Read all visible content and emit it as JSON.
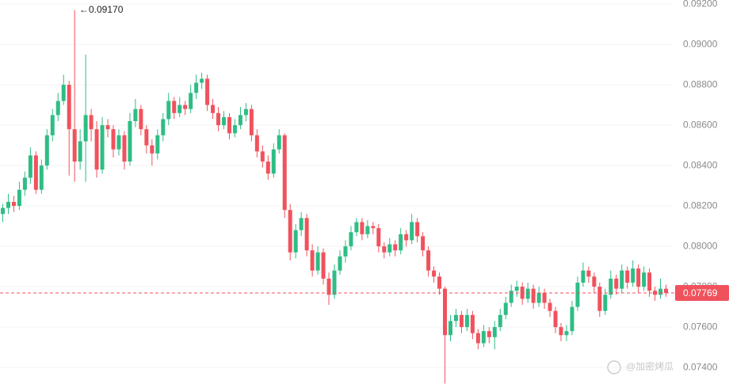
{
  "chart_data": {
    "type": "candlestick",
    "up_color": "#2ebd85",
    "down_color": "#f0525d",
    "ylim": [
      0.07318,
      0.0922
    ],
    "yticks": [
      {
        "value": 0.074,
        "label": "0.07400"
      },
      {
        "value": 0.076,
        "label": "0.07600"
      },
      {
        "value": 0.078,
        "label": "0.07800"
      },
      {
        "value": 0.08,
        "label": "0.08000"
      },
      {
        "value": 0.082,
        "label": "0.08200"
      },
      {
        "value": 0.084,
        "label": "0.08400"
      },
      {
        "value": 0.086,
        "label": "0.08600"
      },
      {
        "value": 0.088,
        "label": "0.08800"
      },
      {
        "value": 0.09,
        "label": "0.09000"
      },
      {
        "value": 0.092,
        "label": "0.09200"
      }
    ],
    "grid": true,
    "high_annotation": {
      "value": 0.0917,
      "label": "0.09170"
    },
    "last_price": {
      "value": 0.07769,
      "label": "0.07769"
    },
    "watermark": "@加密烤瓜",
    "open": [
      0.0816,
      0.0819,
      0.0822,
      0.082,
      0.0828,
      0.0834,
      0.0845,
      0.0828,
      0.084,
      0.0855,
      0.0865,
      0.0872,
      0.088,
      0.0858,
      0.0842,
      0.0852,
      0.0865,
      0.0858,
      0.0838,
      0.086,
      0.0858,
      0.0848,
      0.0855,
      0.0842,
      0.0862,
      0.0868,
      0.0858,
      0.085,
      0.0846,
      0.0855,
      0.0863,
      0.0872,
      0.0866,
      0.087,
      0.0868,
      0.0876,
      0.0881,
      0.0883,
      0.087,
      0.0866,
      0.086,
      0.0864,
      0.0856,
      0.086,
      0.0865,
      0.0868,
      0.0855,
      0.0847,
      0.0842,
      0.0836,
      0.0848,
      0.0855,
      0.0818,
      0.0797,
      0.0808,
      0.0814,
      0.0798,
      0.0788,
      0.0797,
      0.0784,
      0.0776,
      0.0788,
      0.0795,
      0.08,
      0.0807,
      0.0812,
      0.0806,
      0.081,
      0.0809,
      0.08,
      0.0797,
      0.0801,
      0.0798,
      0.0806,
      0.0803,
      0.0812,
      0.0805,
      0.0798,
      0.0788,
      0.0785,
      0.0779,
      0.0756,
      0.0763,
      0.0766,
      0.076,
      0.0766,
      0.0757,
      0.0752,
      0.0758,
      0.0755,
      0.076,
      0.0766,
      0.0772,
      0.0778,
      0.078,
      0.0774,
      0.0779,
      0.0772,
      0.0777,
      0.0772,
      0.0768,
      0.076,
      0.0756,
      0.0758,
      0.077,
      0.0782,
      0.0788,
      0.0785,
      0.078,
      0.0768,
      0.0776,
      0.0784,
      0.0779,
      0.0788,
      0.0782,
      0.0789,
      0.078,
      0.0787,
      0.0778,
      0.0776,
      0.0779
    ],
    "high": [
      0.0821,
      0.0826,
      0.0825,
      0.0832,
      0.0837,
      0.0849,
      0.0847,
      0.0843,
      0.0858,
      0.0868,
      0.0876,
      0.0885,
      0.0882,
      0.0917,
      0.0858,
      0.0895,
      0.0868,
      0.0862,
      0.0864,
      0.0863,
      0.086,
      0.0858,
      0.0857,
      0.0866,
      0.0873,
      0.087,
      0.086,
      0.0853,
      0.0858,
      0.0866,
      0.0876,
      0.0874,
      0.0874,
      0.0872,
      0.088,
      0.0885,
      0.0886,
      0.0885,
      0.0873,
      0.0869,
      0.0867,
      0.0866,
      0.0863,
      0.0869,
      0.0871,
      0.087,
      0.0858,
      0.085,
      0.0845,
      0.0851,
      0.0858,
      0.0856,
      0.0821,
      0.0811,
      0.0817,
      0.0816,
      0.0801,
      0.08,
      0.0799,
      0.0787,
      0.0791,
      0.0798,
      0.0803,
      0.081,
      0.0814,
      0.0814,
      0.0813,
      0.0812,
      0.0811,
      0.0802,
      0.0804,
      0.0803,
      0.0809,
      0.0808,
      0.0816,
      0.0814,
      0.0807,
      0.08,
      0.079,
      0.0787,
      0.078,
      0.0766,
      0.0769,
      0.0768,
      0.0769,
      0.0768,
      0.0759,
      0.0761,
      0.076,
      0.0763,
      0.0769,
      0.0775,
      0.0781,
      0.0783,
      0.0782,
      0.0782,
      0.0781,
      0.078,
      0.0779,
      0.0774,
      0.077,
      0.0762,
      0.0761,
      0.0773,
      0.0785,
      0.0792,
      0.079,
      0.0787,
      0.0782,
      0.0779,
      0.0788,
      0.0786,
      0.0791,
      0.079,
      0.0793,
      0.0791,
      0.079,
      0.0789,
      0.078,
      0.0784,
      0.0781
    ],
    "low": [
      0.0812,
      0.0816,
      0.0817,
      0.0818,
      0.0825,
      0.0831,
      0.0826,
      0.0826,
      0.0838,
      0.0852,
      0.0862,
      0.087,
      0.0835,
      0.0832,
      0.0838,
      0.0832,
      0.0852,
      0.0834,
      0.0836,
      0.0854,
      0.0844,
      0.0845,
      0.0838,
      0.084,
      0.0859,
      0.0855,
      0.0846,
      0.084,
      0.0843,
      0.0852,
      0.086,
      0.0863,
      0.0864,
      0.0865,
      0.0866,
      0.0873,
      0.0878,
      0.0867,
      0.0863,
      0.0857,
      0.0858,
      0.0853,
      0.0854,
      0.0858,
      0.0862,
      0.0852,
      0.0844,
      0.0839,
      0.0833,
      0.0834,
      0.0846,
      0.0814,
      0.0793,
      0.0794,
      0.0805,
      0.0795,
      0.0785,
      0.0786,
      0.0781,
      0.0771,
      0.0774,
      0.0786,
      0.0792,
      0.0798,
      0.0805,
      0.0803,
      0.0804,
      0.0806,
      0.0797,
      0.0794,
      0.0795,
      0.0795,
      0.0796,
      0.08,
      0.0801,
      0.0802,
      0.0795,
      0.0785,
      0.0782,
      0.0776,
      0.0732,
      0.0753,
      0.076,
      0.0757,
      0.0758,
      0.0754,
      0.0749,
      0.075,
      0.0752,
      0.0749,
      0.0758,
      0.0764,
      0.077,
      0.0775,
      0.0771,
      0.0772,
      0.0769,
      0.077,
      0.0769,
      0.0765,
      0.0757,
      0.0753,
      0.0753,
      0.0756,
      0.0768,
      0.078,
      0.0782,
      0.0777,
      0.0765,
      0.0766,
      0.0774,
      0.0776,
      0.0777,
      0.0779,
      0.078,
      0.0777,
      0.0778,
      0.0775,
      0.0773,
      0.0774,
      0.0775
    ],
    "close": [
      0.0819,
      0.0822,
      0.082,
      0.0828,
      0.0834,
      0.0845,
      0.0828,
      0.084,
      0.0855,
      0.0865,
      0.0872,
      0.088,
      0.0858,
      0.0842,
      0.0852,
      0.0865,
      0.0858,
      0.0838,
      0.086,
      0.0858,
      0.0848,
      0.0855,
      0.0842,
      0.0862,
      0.0868,
      0.0858,
      0.085,
      0.0846,
      0.0855,
      0.0863,
      0.0872,
      0.0866,
      0.087,
      0.0868,
      0.0876,
      0.0881,
      0.0883,
      0.087,
      0.0866,
      0.086,
      0.0864,
      0.0856,
      0.086,
      0.0865,
      0.0868,
      0.0855,
      0.0847,
      0.0842,
      0.0836,
      0.0848,
      0.0855,
      0.0818,
      0.0797,
      0.0808,
      0.0814,
      0.0798,
      0.0788,
      0.0797,
      0.0784,
      0.0776,
      0.0788,
      0.0795,
      0.08,
      0.0807,
      0.0812,
      0.0806,
      0.081,
      0.0809,
      0.08,
      0.0797,
      0.0801,
      0.0798,
      0.0806,
      0.0803,
      0.0812,
      0.0805,
      0.0798,
      0.0788,
      0.0785,
      0.0779,
      0.0756,
      0.0763,
      0.0766,
      0.076,
      0.0766,
      0.0757,
      0.0752,
      0.0758,
      0.0755,
      0.076,
      0.0766,
      0.0772,
      0.0778,
      0.078,
      0.0774,
      0.0779,
      0.0772,
      0.0777,
      0.0772,
      0.0768,
      0.076,
      0.0756,
      0.0758,
      0.077,
      0.0782,
      0.0788,
      0.0785,
      0.078,
      0.0768,
      0.0776,
      0.0784,
      0.0779,
      0.0788,
      0.0782,
      0.0789,
      0.078,
      0.0787,
      0.0778,
      0.0776,
      0.0779,
      0.07769
    ]
  }
}
